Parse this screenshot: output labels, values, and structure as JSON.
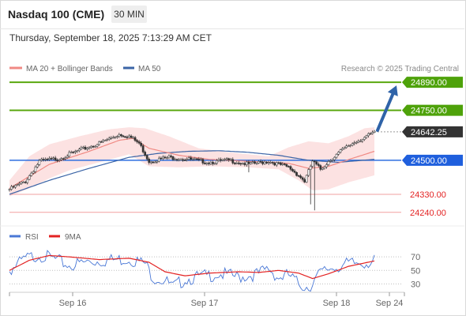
{
  "header": {
    "title": "Nasdaq 100 (CME)",
    "timeframe": "30 MIN",
    "timestamp": "Thursday, September 18, 2025 7:13:29 AM CET"
  },
  "colors": {
    "ma20": "#f08a84",
    "ma50": "#3b64a6",
    "target_line": "#5aa80f",
    "target_label_bg": "#4ea20a",
    "pivot_line": "#2f6fe0",
    "pivot_label_bg": "#1f5fdd",
    "support_line": "#f2a0a0",
    "support_text": "#e32222",
    "current_label_bg": "#333333",
    "arrow": "#2f63a8",
    "candle": "#333333",
    "band_fill": "#fbd8d8",
    "rsi_line": "#4a78d6",
    "rsi_ma_line": "#e32222",
    "grid_dotted": "#bfbfbf",
    "axis_text": "#666666"
  },
  "chart_data": [
    {
      "type": "candlestick",
      "legend": [
        {
          "name": "MA 20 + Bollinger Bands",
          "color_key": "ma20"
        },
        {
          "name": "MA 50",
          "color_key": "ma50"
        }
      ],
      "watermark": "Research © 2025 Trading Central",
      "x_ticks": [
        "Sep 16",
        "Sep 17",
        "Sep 18",
        "Sep 24"
      ],
      "ylim": [
        24180,
        24930
      ],
      "levels": [
        {
          "value": 24890,
          "label": "24890.00",
          "style": "target"
        },
        {
          "value": 24750,
          "label": "24750.00",
          "style": "target"
        },
        {
          "value": 24642.25,
          "label": "24642.25",
          "style": "current"
        },
        {
          "value": 24500,
          "label": "24500.00",
          "style": "pivot"
        },
        {
          "value": 24330,
          "label": "24330.00",
          "style": "support"
        },
        {
          "value": 24240,
          "label": "24240.00",
          "style": "support"
        }
      ],
      "forecast_arrow": {
        "from": 24642.25,
        "to": 24890
      },
      "price_key_points": [
        [
          0,
          24360
        ],
        [
          8,
          24400
        ],
        [
          15,
          24500
        ],
        [
          25,
          24515
        ],
        [
          35,
          24555
        ],
        [
          45,
          24590
        ],
        [
          55,
          24635
        ],
        [
          60,
          24625
        ],
        [
          65,
          24590
        ],
        [
          70,
          24500
        ],
        [
          80,
          24520
        ],
        [
          90,
          24510
        ],
        [
          100,
          24495
        ],
        [
          110,
          24505
        ],
        [
          120,
          24485
        ],
        [
          130,
          24500
        ],
        [
          140,
          24470
        ],
        [
          145,
          24430
        ],
        [
          148,
          24400
        ],
        [
          152,
          24500
        ],
        [
          156,
          24460
        ],
        [
          160,
          24500
        ],
        [
          166,
          24550
        ],
        [
          172,
          24590
        ],
        [
          178,
          24620
        ],
        [
          183,
          24642.25
        ]
      ],
      "spikes": [
        {
          "index": 120,
          "low": 24440
        },
        {
          "index": 151,
          "low": 24280
        },
        {
          "index": 153,
          "low": 24250
        }
      ],
      "ma20_key_points": [
        [
          0,
          24360
        ],
        [
          20,
          24480
        ],
        [
          40,
          24545
        ],
        [
          55,
          24600
        ],
        [
          62,
          24610
        ],
        [
          70,
          24560
        ],
        [
          85,
          24525
        ],
        [
          100,
          24505
        ],
        [
          120,
          24495
        ],
        [
          140,
          24485
        ],
        [
          150,
          24460
        ],
        [
          160,
          24470
        ],
        [
          172,
          24510
        ],
        [
          183,
          24545
        ]
      ],
      "band_upper_key_points": [
        [
          0,
          24400
        ],
        [
          10,
          24520
        ],
        [
          20,
          24580
        ],
        [
          35,
          24620
        ],
        [
          50,
          24655
        ],
        [
          60,
          24665
        ],
        [
          68,
          24660
        ],
        [
          80,
          24620
        ],
        [
          95,
          24560
        ],
        [
          110,
          24540
        ],
        [
          130,
          24520
        ],
        [
          140,
          24565
        ],
        [
          150,
          24595
        ],
        [
          160,
          24585
        ],
        [
          170,
          24620
        ],
        [
          178,
          24660
        ],
        [
          183,
          24665
        ]
      ],
      "band_lower_key_points": [
        [
          0,
          24320
        ],
        [
          10,
          24360
        ],
        [
          20,
          24410
        ],
        [
          30,
          24450
        ],
        [
          45,
          24490
        ],
        [
          60,
          24530
        ],
        [
          70,
          24470
        ],
        [
          85,
          24465
        ],
        [
          100,
          24470
        ],
        [
          120,
          24465
        ],
        [
          135,
          24455
        ],
        [
          145,
          24400
        ],
        [
          152,
          24350
        ],
        [
          160,
          24355
        ],
        [
          170,
          24390
        ],
        [
          183,
          24425
        ]
      ],
      "ma50_key_points": [
        [
          0,
          24330
        ],
        [
          20,
          24400
        ],
        [
          40,
          24460
        ],
        [
          60,
          24515
        ],
        [
          75,
          24535
        ],
        [
          90,
          24545
        ],
        [
          105,
          24548
        ],
        [
          120,
          24540
        ],
        [
          135,
          24525
        ],
        [
          150,
          24500
        ],
        [
          165,
          24490
        ],
        [
          183,
          24505
        ]
      ]
    },
    {
      "type": "line",
      "legend": [
        {
          "name": "RSI",
          "color_key": "rsi_line"
        },
        {
          "name": "9MA",
          "color_key": "rsi_ma_line"
        }
      ],
      "ylim": [
        20,
        90
      ],
      "y_ticks": [
        70,
        50,
        30
      ],
      "rsi_key_points": [
        [
          0,
          55
        ],
        [
          8,
          72
        ],
        [
          15,
          78
        ],
        [
          22,
          72
        ],
        [
          30,
          62
        ],
        [
          40,
          68
        ],
        [
          50,
          70
        ],
        [
          60,
          72
        ],
        [
          68,
          65
        ],
        [
          72,
          45
        ],
        [
          78,
          40
        ],
        [
          82,
          30
        ],
        [
          88,
          42
        ],
        [
          95,
          45
        ],
        [
          105,
          50
        ],
        [
          115,
          45
        ],
        [
          125,
          50
        ],
        [
          130,
          58
        ],
        [
          135,
          44
        ],
        [
          140,
          48
        ],
        [
          145,
          35
        ],
        [
          150,
          30
        ],
        [
          155,
          48
        ],
        [
          160,
          58
        ],
        [
          170,
          64
        ],
        [
          178,
          67
        ],
        [
          183,
          68
        ]
      ],
      "rsi_ma_key_points": [
        [
          0,
          50
        ],
        [
          10,
          65
        ],
        [
          20,
          72
        ],
        [
          30,
          70
        ],
        [
          45,
          66
        ],
        [
          60,
          68
        ],
        [
          70,
          62
        ],
        [
          78,
          48
        ],
        [
          88,
          42
        ],
        [
          100,
          46
        ],
        [
          115,
          48
        ],
        [
          125,
          47
        ],
        [
          135,
          50
        ],
        [
          145,
          46
        ],
        [
          152,
          38
        ],
        [
          160,
          45
        ],
        [
          170,
          56
        ],
        [
          183,
          64
        ]
      ]
    }
  ]
}
